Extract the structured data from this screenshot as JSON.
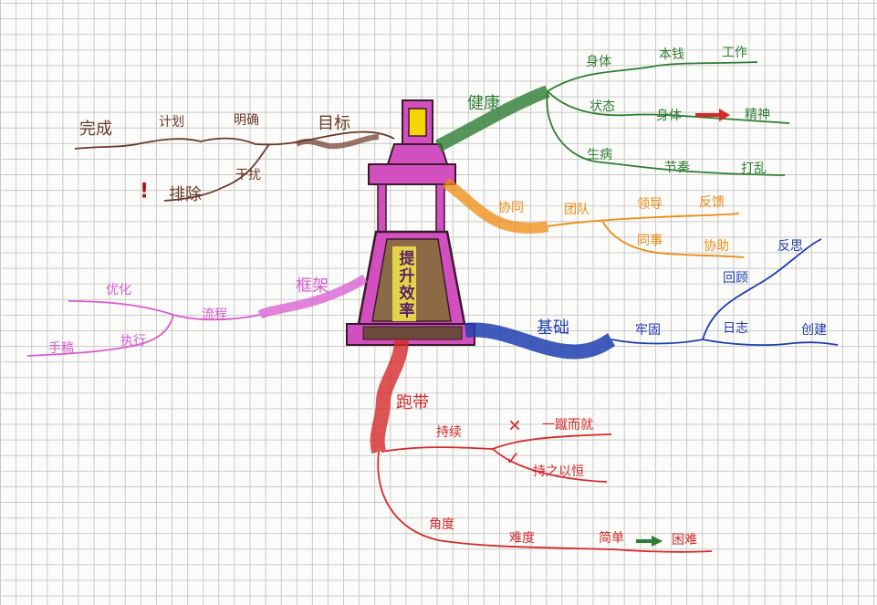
{
  "center": {
    "label": "提升效率"
  },
  "branches": {
    "goal": {
      "root": "目标",
      "items": [
        "明确",
        "计划",
        "完成",
        "干扰",
        "排除"
      ]
    },
    "health": {
      "root": "健康",
      "items": [
        "身体",
        "本钱",
        "工作",
        "状态",
        "身体",
        "精神",
        "生病",
        "节奏",
        "打乱"
      ]
    },
    "teamwork": {
      "root": "协同",
      "items": [
        "团队",
        "领导",
        "反馈",
        "同事",
        "协助"
      ]
    },
    "basics": {
      "root": "基础",
      "items": [
        "牢固",
        "回顾",
        "日志",
        "反思",
        "创建"
      ]
    },
    "framework": {
      "root": "框架",
      "items": [
        "流程",
        "优化",
        "执行",
        "手稿"
      ]
    },
    "rhythm": {
      "root": "跑带",
      "items": [
        "持续",
        "一蹴而就",
        "持之以恒",
        "角度",
        "难度",
        "简单",
        "困难"
      ]
    }
  },
  "symbols": {
    "exclaim": "!",
    "cross": "✕",
    "check": "✓",
    "arrow": "➜"
  },
  "colors": {
    "grid": "#c9c9c9",
    "tower": "#d24fc0",
    "tower_top": "#f5d500",
    "goal": "#6b3a2a",
    "health": "#2e7d32",
    "teamwork": "#ef8b10",
    "basics": "#1f3fb0",
    "framework": "#d95bd0",
    "rhythm": "#d42a2a"
  }
}
